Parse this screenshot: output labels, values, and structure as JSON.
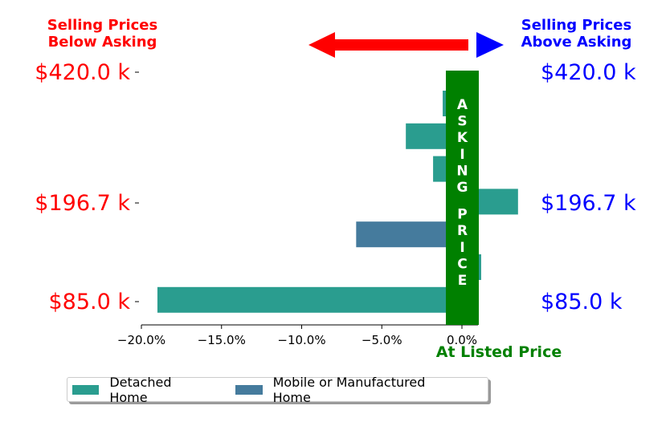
{
  "header": {
    "left_line1": "Selling Prices",
    "left_line2": "Below Asking",
    "right_line1": "Selling Prices",
    "right_line2": "Above Asking",
    "left_color": "#ff0000",
    "right_color": "#0000ff",
    "arrow_left_color": "#ff0000",
    "arrow_right_color": "#0000ff"
  },
  "asking_price_bar": {
    "label": "ASKING PRICE",
    "color": "#008000",
    "text_color": "#ffffff",
    "at_listed_label": "At Listed Price",
    "at_listed_color": "#008000"
  },
  "legend": {
    "items": [
      {
        "label": "Detached Home",
        "color": "#2a9d8f"
      },
      {
        "label": "Mobile or Manufactured Home",
        "color": "#457b9d"
      }
    ]
  },
  "chart_data": {
    "type": "bar",
    "orientation": "horizontal",
    "x_tick_labels": [
      "−20.0%",
      "−15.0%",
      "−10.0%",
      "−5.0%",
      "0.0%"
    ],
    "x_ticks": [
      -20,
      -15,
      -10,
      -5,
      0
    ],
    "xlim": [
      -20,
      1
    ],
    "y_tick_labels_left": [
      "$420.0 k",
      "$196.7 k",
      "$85.0 k"
    ],
    "y_tick_labels_right": [
      "$420.0 k",
      "$196.7 k",
      "$85.0 k"
    ],
    "y_label_left_color": "#ff0000",
    "y_label_right_color": "#0000ff",
    "bars": [
      {
        "series": "Detached Home",
        "value": -1.2
      },
      {
        "series": "Detached Home",
        "value": -3.5
      },
      {
        "series": "Detached Home",
        "value": -1.8
      },
      {
        "series": "Detached Home",
        "value": 3.5
      },
      {
        "series": "Mobile or Manufactured Home",
        "value": -6.6
      },
      {
        "series": "Detached Home",
        "value": 1.2
      },
      {
        "series": "Detached Home",
        "value": -19.0
      }
    ],
    "series": [
      {
        "name": "Detached Home",
        "color": "#2a9d8f"
      },
      {
        "name": "Mobile or Manufactured Home",
        "color": "#457b9d"
      }
    ]
  }
}
